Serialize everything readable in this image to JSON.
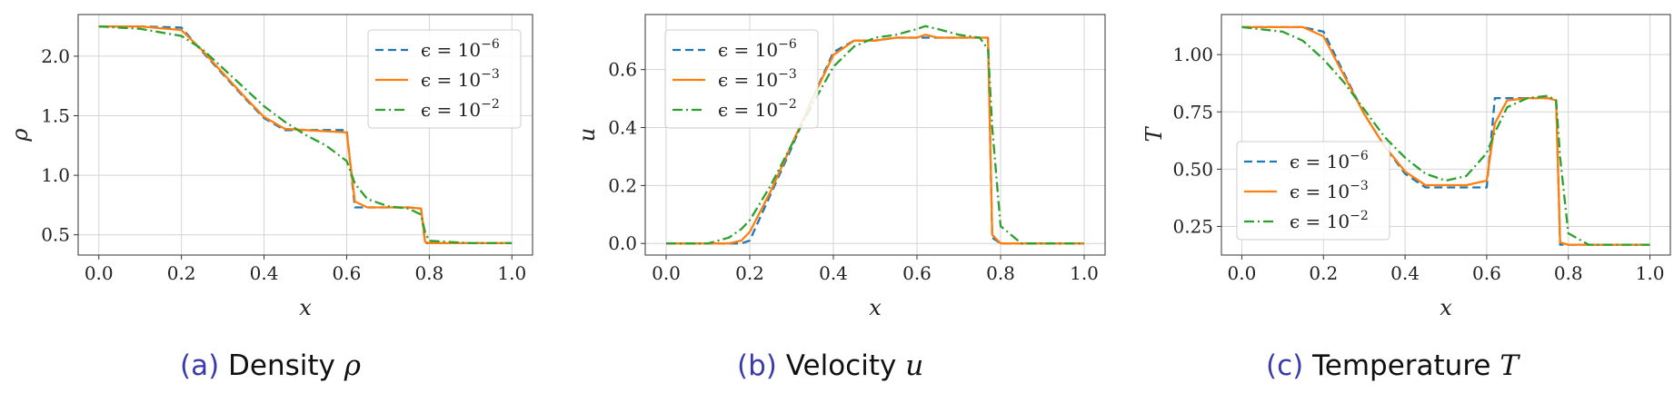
{
  "legend_labels": {
    "eps_base": "ϵ = 10",
    "exps": [
      "−6",
      "−3",
      "−2"
    ]
  },
  "colors": {
    "series": [
      "#1f77b4",
      "#ff7f0e",
      "#2ca02c"
    ],
    "caption_letter": "#3a3aad"
  },
  "chart_data": [
    {
      "type": "line",
      "caption": {
        "letter": "(a)",
        "text": "Density",
        "symbol": "ρ"
      },
      "xlabel": "x",
      "ylabel": "ρ",
      "xlim": [
        -0.05,
        1.05
      ],
      "ylim": [
        0.33,
        2.35
      ],
      "xticks": [
        0.0,
        0.2,
        0.4,
        0.6,
        0.8,
        1.0
      ],
      "xtick_labels": [
        "0.0",
        "0.2",
        "0.4",
        "0.6",
        "0.8",
        "1.0"
      ],
      "yticks": [
        0.5,
        1.0,
        1.5,
        2.0
      ],
      "ytick_labels": [
        "0.5",
        "1.0",
        "1.5",
        "2.0"
      ],
      "grid": true,
      "legend_position": "top-right",
      "x": [
        0,
        0.1,
        0.2,
        0.25,
        0.3,
        0.35,
        0.4,
        0.45,
        0.5,
        0.55,
        0.6,
        0.62,
        0.65,
        0.7,
        0.75,
        0.78,
        0.79,
        0.8,
        0.9,
        1.0
      ],
      "series": [
        {
          "name": "ϵ = 10^−6",
          "style": "dashed",
          "values": [
            2.25,
            2.25,
            2.24,
            2.04,
            1.85,
            1.66,
            1.48,
            1.38,
            1.38,
            1.38,
            1.38,
            0.73,
            0.73,
            0.73,
            0.73,
            0.72,
            0.43,
            0.43,
            0.43,
            0.43
          ]
        },
        {
          "name": "ϵ = 10^−3",
          "style": "solid",
          "values": [
            2.25,
            2.25,
            2.22,
            2.05,
            1.86,
            1.67,
            1.49,
            1.39,
            1.38,
            1.37,
            1.36,
            0.78,
            0.73,
            0.73,
            0.73,
            0.72,
            0.44,
            0.43,
            0.43,
            0.43
          ]
        },
        {
          "name": "ϵ = 10^−2",
          "style": "dashdot",
          "values": [
            2.25,
            2.23,
            2.17,
            2.06,
            1.9,
            1.74,
            1.58,
            1.45,
            1.34,
            1.25,
            1.12,
            0.93,
            0.8,
            0.74,
            0.72,
            0.67,
            0.52,
            0.45,
            0.43,
            0.43
          ]
        }
      ]
    },
    {
      "type": "line",
      "caption": {
        "letter": "(b)",
        "text": "Velocity",
        "symbol": "u"
      },
      "xlabel": "x",
      "ylabel": "u",
      "xlim": [
        -0.05,
        1.05
      ],
      "ylim": [
        -0.04,
        0.79
      ],
      "xticks": [
        0.0,
        0.2,
        0.4,
        0.6,
        0.8,
        1.0
      ],
      "xtick_labels": [
        "0.0",
        "0.2",
        "0.4",
        "0.6",
        "0.8",
        "1.0"
      ],
      "yticks": [
        0.0,
        0.2,
        0.4,
        0.6
      ],
      "ytick_labels": [
        "0.0",
        "0.2",
        "0.4",
        "0.6"
      ],
      "grid": true,
      "legend_position": "top-left",
      "x": [
        0,
        0.1,
        0.15,
        0.18,
        0.2,
        0.25,
        0.3,
        0.35,
        0.4,
        0.45,
        0.5,
        0.55,
        0.6,
        0.62,
        0.65,
        0.7,
        0.75,
        0.77,
        0.78,
        0.8,
        0.85,
        1.0
      ],
      "series": [
        {
          "name": "ϵ = 10^−6",
          "style": "dashed",
          "values": [
            0,
            0,
            0,
            0,
            0.01,
            0.17,
            0.33,
            0.5,
            0.66,
            0.7,
            0.7,
            0.71,
            0.71,
            0.71,
            0.71,
            0.71,
            0.71,
            0.71,
            0.02,
            0,
            0,
            0
          ]
        },
        {
          "name": "ϵ = 10^−3",
          "style": "solid",
          "values": [
            0,
            0,
            0,
            0.01,
            0.04,
            0.18,
            0.34,
            0.5,
            0.65,
            0.7,
            0.7,
            0.71,
            0.71,
            0.72,
            0.71,
            0.71,
            0.71,
            0.71,
            0.03,
            0,
            0,
            0
          ]
        },
        {
          "name": "ϵ = 10^−2",
          "style": "dashdot",
          "values": [
            0,
            0,
            0.02,
            0.05,
            0.08,
            0.2,
            0.34,
            0.48,
            0.61,
            0.68,
            0.71,
            0.72,
            0.74,
            0.75,
            0.74,
            0.72,
            0.71,
            0.67,
            0.4,
            0.06,
            0,
            0
          ]
        }
      ]
    },
    {
      "type": "line",
      "caption": {
        "letter": "(c)",
        "text": "Temperature",
        "symbol": "T"
      },
      "xlabel": "x",
      "ylabel": "T",
      "xlim": [
        -0.05,
        1.05
      ],
      "ylim": [
        0.125,
        1.175
      ],
      "xticks": [
        0.0,
        0.2,
        0.4,
        0.6,
        0.8,
        1.0
      ],
      "xtick_labels": [
        "0.0",
        "0.2",
        "0.4",
        "0.6",
        "0.8",
        "1.0"
      ],
      "yticks": [
        0.25,
        0.5,
        0.75,
        1.0
      ],
      "ytick_labels": [
        "0.25",
        "0.50",
        "0.75",
        "1.00"
      ],
      "grid": true,
      "legend_position": "bottom-left",
      "x": [
        0,
        0.1,
        0.15,
        0.2,
        0.25,
        0.3,
        0.35,
        0.4,
        0.45,
        0.5,
        0.55,
        0.6,
        0.62,
        0.65,
        0.7,
        0.75,
        0.77,
        0.78,
        0.8,
        0.85,
        1.0
      ],
      "series": [
        {
          "name": "ϵ = 10^−6",
          "style": "dashed",
          "values": [
            1.12,
            1.12,
            1.12,
            1.1,
            0.92,
            0.74,
            0.6,
            0.48,
            0.42,
            0.42,
            0.42,
            0.42,
            0.81,
            0.81,
            0.81,
            0.81,
            0.8,
            0.17,
            0.17,
            0.17,
            0.17
          ]
        },
        {
          "name": "ϵ = 10^−3",
          "style": "solid",
          "values": [
            1.12,
            1.12,
            1.12,
            1.08,
            0.91,
            0.74,
            0.6,
            0.49,
            0.43,
            0.43,
            0.43,
            0.45,
            0.7,
            0.8,
            0.81,
            0.81,
            0.8,
            0.18,
            0.17,
            0.17,
            0.17
          ]
        },
        {
          "name": "ϵ = 10^−2",
          "style": "dashdot",
          "values": [
            1.12,
            1.1,
            1.06,
            0.98,
            0.88,
            0.76,
            0.64,
            0.55,
            0.48,
            0.45,
            0.47,
            0.57,
            0.66,
            0.77,
            0.81,
            0.82,
            0.8,
            0.55,
            0.22,
            0.17,
            0.17
          ]
        }
      ]
    }
  ]
}
